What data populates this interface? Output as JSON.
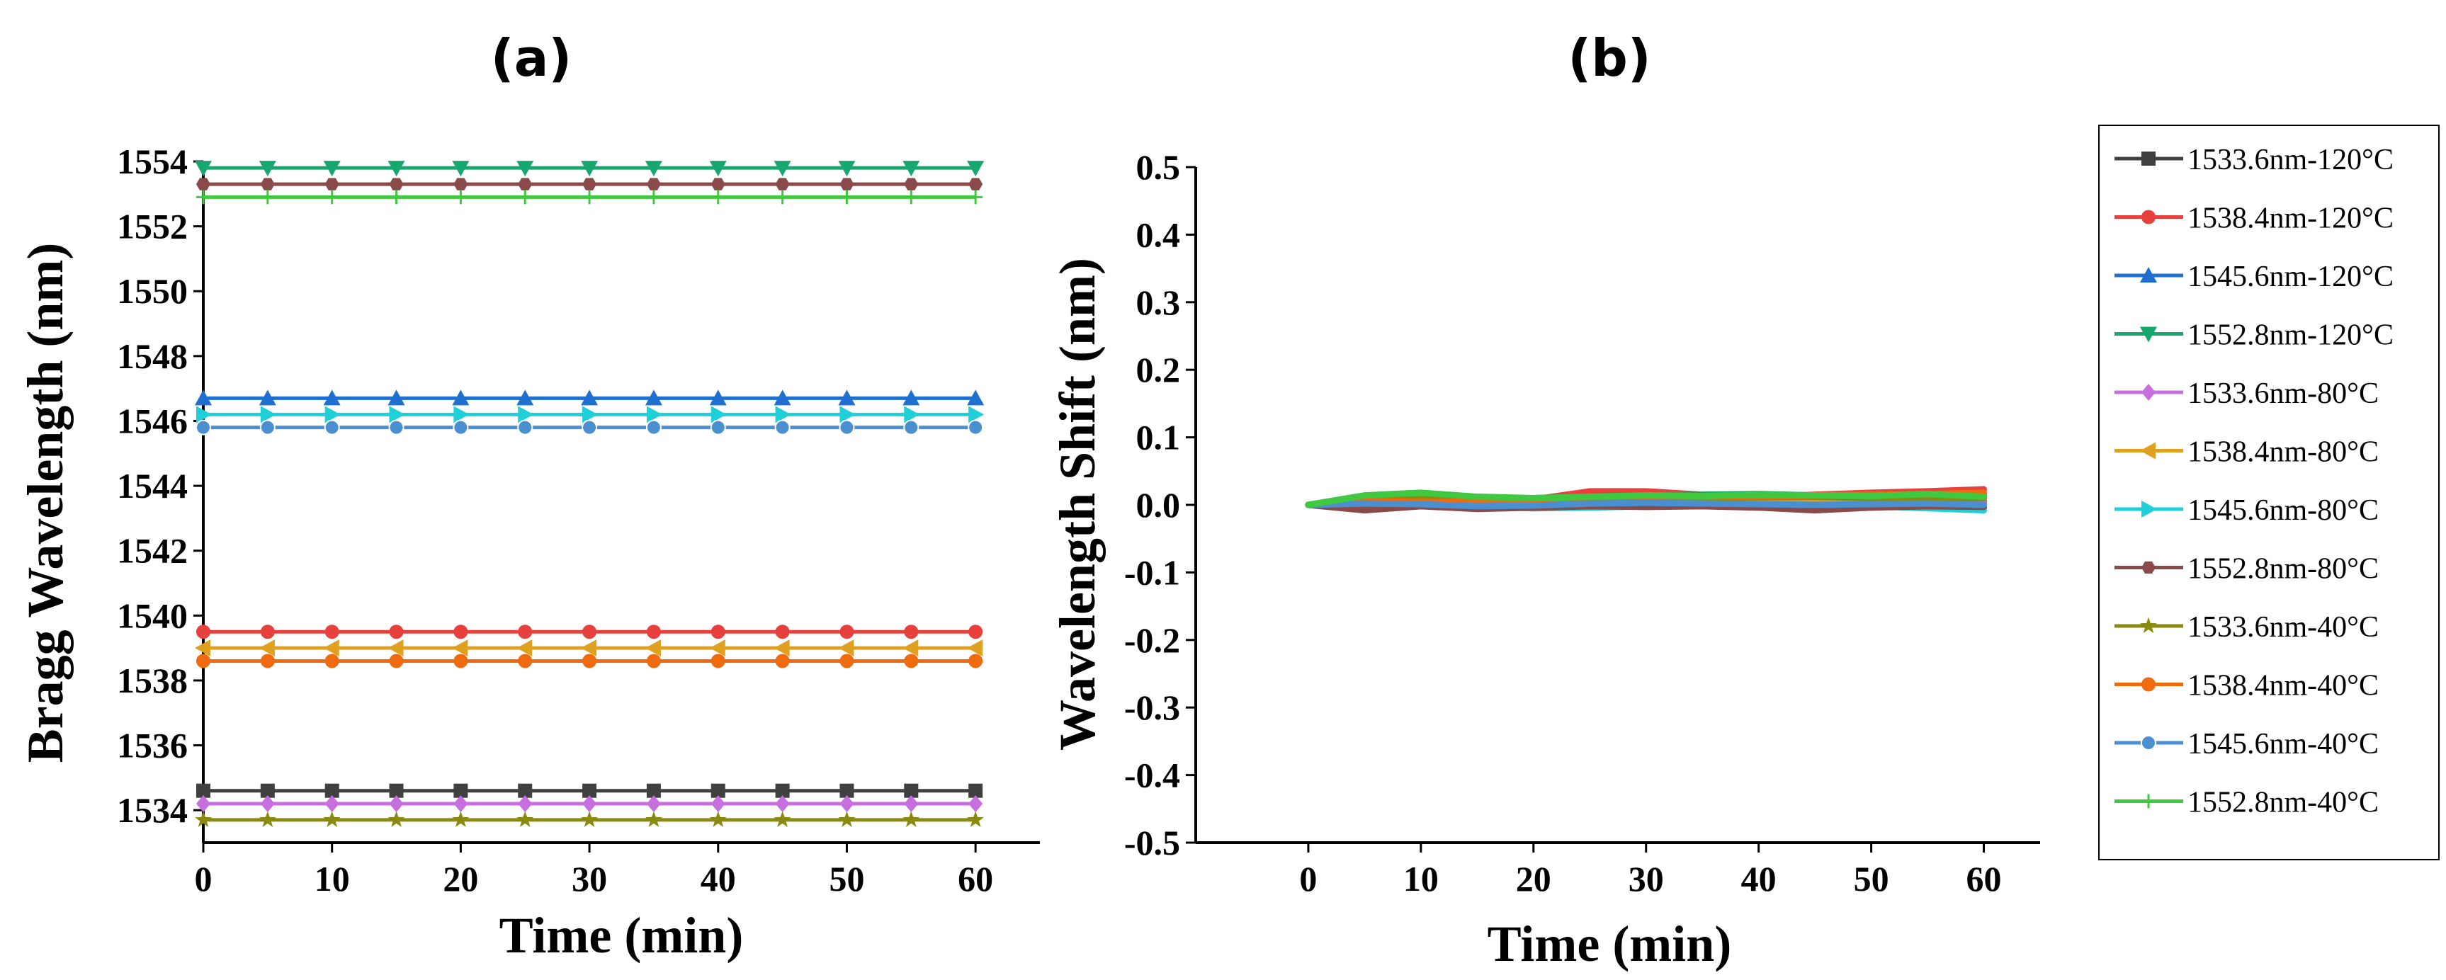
{
  "chart_data": [
    {
      "type": "line",
      "panel_label": "(a)",
      "xlabel": "Time (min)",
      "ylabel": "Bragg Wavelength (nm)",
      "xlim": [
        0,
        65
      ],
      "ylim": [
        1533,
        1554
      ],
      "xticks": [
        0,
        10,
        20,
        30,
        40,
        50,
        60
      ],
      "yticks": [
        1534,
        1536,
        1538,
        1540,
        1542,
        1544,
        1546,
        1548,
        1550,
        1552,
        1554
      ],
      "x": [
        0,
        5,
        10,
        15,
        20,
        25,
        30,
        35,
        40,
        45,
        50,
        55,
        60
      ],
      "series": [
        {
          "name": "1533.6nm-120°C",
          "color": "#404040",
          "marker": "square",
          "values": [
            1534.6,
            1534.6,
            1534.6,
            1534.6,
            1534.6,
            1534.6,
            1534.6,
            1534.6,
            1534.6,
            1534.6,
            1534.6,
            1534.6,
            1534.6
          ]
        },
        {
          "name": "1538.4nm-120°C",
          "color": "#e8403c",
          "marker": "circle",
          "values": [
            1539.5,
            1539.5,
            1539.5,
            1539.5,
            1539.5,
            1539.5,
            1539.5,
            1539.5,
            1539.5,
            1539.5,
            1539.5,
            1539.5,
            1539.5
          ]
        },
        {
          "name": "1545.6nm-120°C",
          "color": "#1f6fd1",
          "marker": "triangle-up",
          "values": [
            1546.7,
            1546.7,
            1546.7,
            1546.7,
            1546.7,
            1546.7,
            1546.7,
            1546.7,
            1546.7,
            1546.7,
            1546.7,
            1546.7,
            1546.7
          ]
        },
        {
          "name": "1552.8nm-120°C",
          "color": "#17a870",
          "marker": "triangle-down",
          "values": [
            1553.8,
            1553.8,
            1553.8,
            1553.8,
            1553.8,
            1553.8,
            1553.8,
            1553.8,
            1553.8,
            1553.8,
            1553.8,
            1553.8,
            1553.8
          ]
        },
        {
          "name": "1533.6nm-80°C",
          "color": "#c86fe0",
          "marker": "diamond",
          "values": [
            1534.2,
            1534.2,
            1534.2,
            1534.2,
            1534.2,
            1534.2,
            1534.2,
            1534.2,
            1534.2,
            1534.2,
            1534.2,
            1534.2,
            1534.2
          ]
        },
        {
          "name": "1538.4nm-80°C",
          "color": "#e0a020",
          "marker": "triangle-left",
          "values": [
            1539.0,
            1539.0,
            1539.0,
            1539.0,
            1539.0,
            1539.0,
            1539.0,
            1539.0,
            1539.0,
            1539.0,
            1539.0,
            1539.0,
            1539.0
          ]
        },
        {
          "name": "1545.6nm-80°C",
          "color": "#20d0d8",
          "marker": "triangle-right",
          "values": [
            1546.2,
            1546.2,
            1546.2,
            1546.2,
            1546.2,
            1546.2,
            1546.2,
            1546.2,
            1546.2,
            1546.2,
            1546.2,
            1546.2,
            1546.2
          ]
        },
        {
          "name": "1552.8nm-80°C",
          "color": "#8a4a4a",
          "marker": "hexagon",
          "values": [
            1553.3,
            1553.3,
            1553.3,
            1553.3,
            1553.3,
            1553.3,
            1553.3,
            1553.3,
            1553.3,
            1553.3,
            1553.3,
            1553.3,
            1553.3
          ]
        },
        {
          "name": "1533.6nm-40°C",
          "color": "#8a8a10",
          "marker": "star",
          "values": [
            1533.7,
            1533.7,
            1533.7,
            1533.7,
            1533.7,
            1533.7,
            1533.7,
            1533.7,
            1533.7,
            1533.7,
            1533.7,
            1533.7,
            1533.7
          ]
        },
        {
          "name": "1538.4nm-40°C",
          "color": "#f06a10",
          "marker": "circle",
          "values": [
            1538.6,
            1538.6,
            1538.6,
            1538.6,
            1538.6,
            1538.6,
            1538.6,
            1538.6,
            1538.6,
            1538.6,
            1538.6,
            1538.6,
            1538.6
          ]
        },
        {
          "name": "1545.6nm-40°C",
          "color": "#4a90d0",
          "marker": "half-circle",
          "values": [
            1545.8,
            1545.8,
            1545.8,
            1545.8,
            1545.8,
            1545.8,
            1545.8,
            1545.8,
            1545.8,
            1545.8,
            1545.8,
            1545.8,
            1545.8
          ]
        },
        {
          "name": "1552.8nm-40°C",
          "color": "#40c840",
          "marker": "plus",
          "values": [
            1552.9,
            1552.9,
            1552.9,
            1552.9,
            1552.9,
            1552.9,
            1552.9,
            1552.9,
            1552.9,
            1552.9,
            1552.9,
            1552.9,
            1552.9
          ]
        }
      ]
    },
    {
      "type": "line",
      "panel_label": "(b)",
      "xlabel": "Time (min)",
      "ylabel": "Wavelength Shift (nm)",
      "xlim": [
        -10,
        65
      ],
      "ylim": [
        -0.5,
        0.5
      ],
      "xticks": [
        0,
        10,
        20,
        30,
        40,
        50,
        60
      ],
      "yticks": [
        -0.5,
        -0.4,
        -0.3,
        -0.2,
        -0.1,
        0.0,
        0.1,
        0.2,
        0.3,
        0.4,
        0.5
      ],
      "ytick_labels": [
        "-0.5",
        "-0.4",
        "-0.3",
        "-0.2",
        "-0.1",
        "0.0",
        "0.1",
        "0.2",
        "0.3",
        "0.4",
        "0.5"
      ],
      "x": [
        0,
        5,
        10,
        15,
        20,
        25,
        30,
        35,
        40,
        45,
        50,
        55,
        60
      ],
      "series": [
        {
          "color": "#404040",
          "values": [
            0,
            -0.005,
            0.0,
            -0.005,
            0.002,
            0.004,
            0.003,
            0.005,
            0.004,
            -0.004,
            0.002,
            0.004,
            0.005
          ]
        },
        {
          "color": "#e8403c",
          "values": [
            0,
            0.003,
            0.0,
            0.002,
            0.008,
            0.02,
            0.02,
            0.015,
            0.012,
            0.015,
            0.018,
            0.02,
            0.023
          ]
        },
        {
          "color": "#1f6fd1",
          "values": [
            0,
            0.005,
            0.006,
            0.004,
            0.003,
            0.004,
            0.006,
            0.008,
            0.007,
            0.004,
            0.002,
            0.0,
            -0.004
          ]
        },
        {
          "color": "#17a870",
          "values": [
            0,
            0.012,
            0.014,
            0.01,
            0.01,
            0.012,
            0.014,
            0.015,
            0.016,
            0.014,
            0.012,
            0.014,
            0.015
          ]
        },
        {
          "color": "#c86fe0",
          "values": [
            0,
            0.004,
            0.006,
            0.005,
            0.004,
            0.005,
            0.006,
            0.004,
            0.003,
            0.004,
            0.005,
            0.004,
            0.003
          ]
        },
        {
          "color": "#e0a020",
          "values": [
            0,
            0.006,
            0.008,
            0.007,
            0.006,
            0.008,
            0.01,
            0.009,
            0.008,
            0.009,
            0.01,
            0.011,
            0.012
          ]
        },
        {
          "color": "#20d0d8",
          "values": [
            0,
            0.004,
            0.002,
            -0.002,
            -0.005,
            -0.004,
            -0.002,
            0.0,
            0.001,
            0.0,
            -0.002,
            -0.005,
            -0.008
          ]
        },
        {
          "color": "#8a4a4a",
          "values": [
            0,
            -0.008,
            -0.002,
            -0.006,
            -0.004,
            -0.002,
            -0.003,
            -0.002,
            -0.004,
            -0.008,
            -0.004,
            -0.002,
            -0.003
          ]
        },
        {
          "color": "#8a8a10",
          "values": [
            0,
            0.008,
            0.01,
            0.008,
            0.009,
            0.01,
            0.011,
            0.01,
            0.011,
            0.012,
            0.01,
            0.009,
            0.01
          ]
        },
        {
          "color": "#f06a10",
          "values": [
            0,
            0.006,
            0.004,
            0.005,
            0.008,
            0.012,
            0.013,
            0.012,
            0.012,
            0.014,
            0.015,
            0.016,
            0.018
          ]
        },
        {
          "color": "#4a90d0",
          "values": [
            0,
            0.002,
            0.001,
            -0.002,
            -0.001,
            0.002,
            0.003,
            0.002,
            0.001,
            0.0,
            0.001,
            0.002,
            0.0
          ]
        },
        {
          "color": "#40c840",
          "values": [
            0,
            0.014,
            0.018,
            0.012,
            0.01,
            0.012,
            0.014,
            0.013,
            0.015,
            0.014,
            0.013,
            0.016,
            0.012
          ]
        }
      ]
    }
  ]
}
